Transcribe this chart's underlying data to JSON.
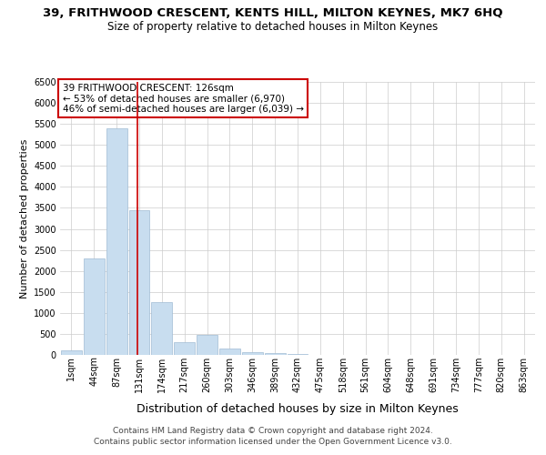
{
  "title1": "39, FRITHWOOD CRESCENT, KENTS HILL, MILTON KEYNES, MK7 6HQ",
  "title2": "Size of property relative to detached houses in Milton Keynes",
  "xlabel": "Distribution of detached houses by size in Milton Keynes",
  "ylabel": "Number of detached properties",
  "footer1": "Contains HM Land Registry data © Crown copyright and database right 2024.",
  "footer2": "Contains public sector information licensed under the Open Government Licence v3.0.",
  "annotation_line1": "39 FRITHWOOD CRESCENT: 126sqm",
  "annotation_line2": "← 53% of detached houses are smaller (6,970)",
  "annotation_line3": "46% of semi-detached houses are larger (6,039) →",
  "bar_color": "#c8ddef",
  "bar_edge_color": "#a0bcd4",
  "grid_color": "#cccccc",
  "marker_line_color": "#cc0000",
  "annotation_box_edge": "#cc0000",
  "categories": [
    "1sqm",
    "44sqm",
    "87sqm",
    "131sqm",
    "174sqm",
    "217sqm",
    "260sqm",
    "303sqm",
    "346sqm",
    "389sqm",
    "432sqm",
    "475sqm",
    "518sqm",
    "561sqm",
    "604sqm",
    "648sqm",
    "691sqm",
    "734sqm",
    "777sqm",
    "820sqm",
    "863sqm"
  ],
  "values": [
    100,
    2300,
    5400,
    3450,
    1250,
    300,
    470,
    150,
    75,
    50,
    20,
    10,
    0,
    0,
    0,
    0,
    0,
    0,
    0,
    0,
    0
  ],
  "marker_index": 3,
  "ylim": [
    0,
    6500
  ],
  "yticks": [
    0,
    500,
    1000,
    1500,
    2000,
    2500,
    3000,
    3500,
    4000,
    4500,
    5000,
    5500,
    6000,
    6500
  ],
  "background_color": "#ffffff",
  "title1_fontsize": 9.5,
  "title2_fontsize": 8.5,
  "xlabel_fontsize": 9,
  "ylabel_fontsize": 8,
  "tick_fontsize": 7,
  "footer_fontsize": 6.5,
  "annotation_fontsize": 7.5
}
